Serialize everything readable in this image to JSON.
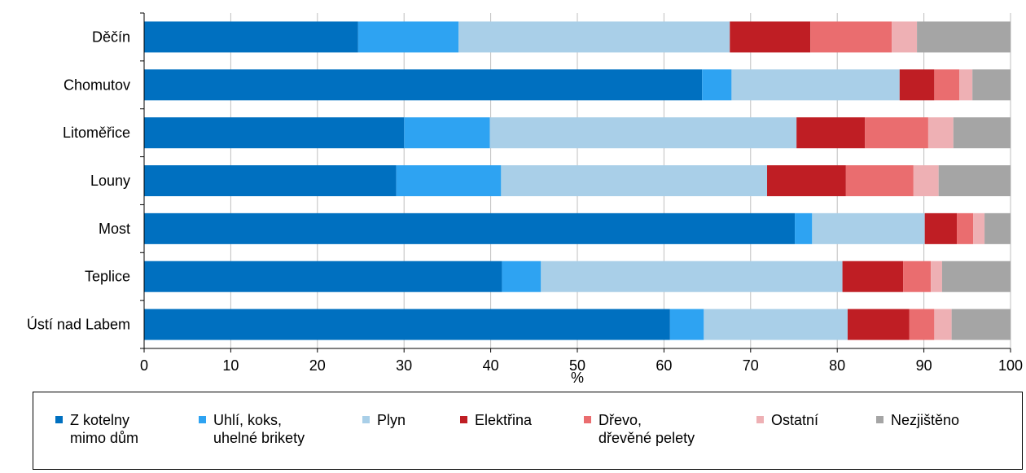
{
  "chart_data": {
    "type": "bar",
    "orientation": "horizontal",
    "stacked": true,
    "categories": [
      "Děčín",
      "Chomutov",
      "Litoměřice",
      "Louny",
      "Most",
      "Teplice",
      "Ústí nad Labem"
    ],
    "xlabel": "%",
    "xlim": [
      0,
      100
    ],
    "xticks": [
      0,
      10,
      20,
      30,
      40,
      50,
      60,
      70,
      80,
      90,
      100
    ],
    "grid": "vertical",
    "legend_position": "bottom",
    "series": [
      {
        "name": "Z kotelny\nmimo dům",
        "color": "#0070C0",
        "values": [
          24.7,
          64.4,
          30.0,
          29.1,
          75.1,
          41.3,
          60.7
        ]
      },
      {
        "name": "Uhlí, koks,\nuhelné brikety",
        "color": "#2EA3F2",
        "values": [
          11.6,
          3.4,
          9.9,
          12.1,
          2.0,
          4.5,
          3.9
        ]
      },
      {
        "name": "Plyn",
        "color": "#A9CFE8",
        "values": [
          31.3,
          19.4,
          35.4,
          30.7,
          13.0,
          34.8,
          16.6
        ]
      },
      {
        "name": "Elektřina",
        "color": "#BF1E24",
        "values": [
          9.3,
          4.0,
          7.9,
          9.1,
          3.7,
          7.0,
          7.1
        ]
      },
      {
        "name": "Dřevo,\ndřevěné pelety",
        "color": "#EA6D6F",
        "values": [
          9.4,
          2.9,
          7.3,
          7.8,
          1.9,
          3.2,
          2.9
        ]
      },
      {
        "name": "Ostatní",
        "color": "#EEB0B4",
        "values": [
          2.9,
          1.5,
          2.9,
          2.9,
          1.3,
          1.3,
          2.0
        ]
      },
      {
        "name": "Nezjištěno",
        "color": "#A5A5A5",
        "values": [
          10.8,
          4.4,
          6.6,
          8.3,
          3.0,
          7.9,
          6.8
        ]
      }
    ]
  }
}
